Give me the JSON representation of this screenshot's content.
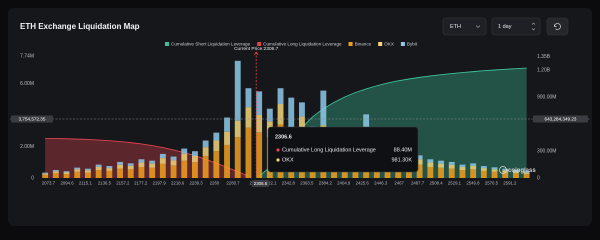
{
  "controls": {
    "symbol": "ETH",
    "interval": "1 day"
  },
  "chart_data": {
    "type": "bar",
    "title": "ETH Exchange Liquidation Map",
    "x": [
      2070,
      2082,
      2094,
      2106,
      2118,
      2130,
      2142,
      2154,
      2166,
      2178,
      2190,
      2202,
      2214,
      2226,
      2238,
      2250,
      2262,
      2274,
      2286,
      2298,
      2310,
      2322,
      2334,
      2346,
      2358,
      2370,
      2382,
      2394,
      2406,
      2418,
      2430,
      2442,
      2454,
      2466,
      2478,
      2490,
      2502,
      2514,
      2526,
      2538,
      2550,
      2562,
      2574,
      2586,
      2598,
      2610
    ],
    "series": [
      {
        "name": "Cumulative Short Liquidation Leverage",
        "color": "#3dbf9c",
        "kind": "area",
        "axis": "y2",
        "values": [
          null,
          null,
          null,
          null,
          null,
          null,
          null,
          null,
          null,
          null,
          null,
          null,
          null,
          null,
          null,
          null,
          null,
          null,
          null,
          null,
          20000000,
          120000000,
          260000000,
          420000000,
          560000000,
          680000000,
          770000000,
          840000000,
          900000000,
          950000000,
          990000000,
          1025000000,
          1055000000,
          1080000000,
          1100000000,
          1118000000,
          1134000000,
          1148000000,
          1160000000,
          1172000000,
          1182000000,
          1192000000,
          1200000000,
          1208000000,
          1215000000,
          1222000000
        ]
      },
      {
        "name": "Cumulative Long Liquidation Leverage",
        "color": "#e0434f",
        "kind": "area",
        "axis": "y2",
        "values": [
          440000000,
          438000000,
          436000000,
          432000000,
          428000000,
          422000000,
          415000000,
          405000000,
          393000000,
          378000000,
          360000000,
          338000000,
          312000000,
          282000000,
          248000000,
          208000000,
          165000000,
          118000000,
          70000000,
          22000000,
          null,
          null,
          null,
          null,
          null,
          null,
          null,
          null,
          null,
          null,
          null,
          null,
          null,
          null,
          null,
          null,
          null,
          null,
          null,
          null,
          null,
          null,
          null,
          null,
          null,
          null
        ]
      },
      {
        "name": "Binance",
        "color": "#f0a020",
        "kind": "bar",
        "values": [
          200000,
          300000,
          250000,
          400000,
          350000,
          500000,
          450000,
          600000,
          550000,
          700000,
          650000,
          900000,
          800000,
          1100000,
          1000000,
          1400000,
          1700000,
          2100000,
          2600000,
          3200000,
          2900000,
          2600000,
          3400000,
          2200000,
          2800000,
          1900000,
          2400000,
          1700000,
          1500000,
          1300000,
          1600000,
          1100000,
          1000000,
          900000,
          800000,
          850000,
          700000,
          650000,
          600000,
          500000,
          550000,
          450000,
          400000,
          350000,
          300000,
          250000
        ]
      },
      {
        "name": "OKX",
        "color": "#f3d77a",
        "kind": "bar",
        "values": [
          80000,
          120000,
          100000,
          150000,
          140000,
          200000,
          180000,
          240000,
          220000,
          280000,
          260000,
          360000,
          320000,
          440000,
          400000,
          560000,
          680000,
          840000,
          1040000,
          1300000,
          1100000,
          1000000,
          1300000,
          900000,
          1100000,
          760000,
          950000,
          680000,
          600000,
          520000,
          640000,
          440000,
          400000,
          360000,
          320000,
          340000,
          280000,
          260000,
          240000,
          200000,
          220000,
          180000,
          160000,
          140000,
          120000,
          100000
        ]
      },
      {
        "name": "Bybit",
        "color": "#8ec9e8",
        "kind": "bar",
        "values": [
          60000,
          90000,
          80000,
          110000,
          100000,
          150000,
          130000,
          180000,
          160000,
          210000,
          190000,
          270000,
          240000,
          330000,
          300000,
          420000,
          500000,
          900000,
          3800000,
          1200000,
          1500000,
          800000,
          1000000,
          2000000,
          900000,
          600000,
          2200000,
          500000,
          450000,
          400000,
          1800000,
          330000,
          300000,
          270000,
          240000,
          250000,
          210000,
          190000,
          180000,
          150000,
          160000,
          130000,
          120000,
          100000,
          90000,
          70000
        ]
      }
    ],
    "xlim": [
      2062,
      2616
    ],
    "xticks": [
      2073.7,
      2094.6,
      2115.1,
      2136.5,
      2157.2,
      2177.2,
      2197.9,
      2218.6,
      2239.3,
      2260,
      2280.7,
      2306.6,
      2322.1,
      2342.8,
      2363.5,
      2384.2,
      2404.9,
      2425.6,
      2446.3,
      2467,
      2487.7,
      2508.4,
      2529.1,
      2549.8,
      2570.5,
      2591.2
    ],
    "ylim": [
      0,
      8000000
    ],
    "yticks": [
      0,
      {
        "value": 2000000,
        "label": "2.00M"
      },
      {
        "value": 6000000,
        "label": "6.00M"
      },
      {
        "value": 7740000,
        "label": "7.74M"
      }
    ],
    "y2lim": [
      0,
      1400000000
    ],
    "y2ticks": [
      0,
      {
        "value": 300000000,
        "label": "300.00M"
      },
      {
        "value": 900000000,
        "label": "900.00M"
      },
      {
        "value": 1200000000,
        "label": "1.20B"
      },
      {
        "value": 1350000000,
        "label": "1.35B"
      }
    ],
    "grid": false,
    "current_price": {
      "value": 2306.7,
      "label": "Current Price:2306.7"
    },
    "crosshair": {
      "y_label": "3,754,572.35",
      "y2_label": "643,284,349.23",
      "x_label": "2306.6"
    },
    "tooltip": {
      "title": "2306.6",
      "rows": [
        {
          "name": "Cumulative Long Liquidation Leverage",
          "value": "88.40M"
        },
        {
          "name": "OKX",
          "value": "981.30K"
        }
      ]
    },
    "watermark": "coinglass"
  }
}
